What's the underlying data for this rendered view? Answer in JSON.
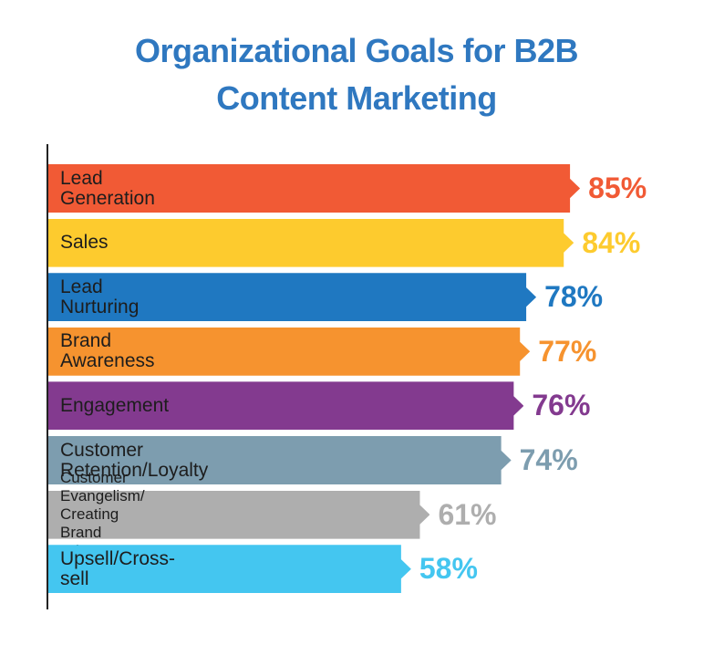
{
  "chart_data": {
    "type": "bar",
    "orientation": "horizontal",
    "title": "Organizational Goals for B2B Content Marketing",
    "categories": [
      "Lead Generation",
      "Sales",
      "Lead Nurturing",
      "Brand Awareness",
      "Engagement",
      "Customer Retention/Loyalty",
      "Customer Evangelism/\nCreating Brand Advocates",
      "Upsell/Cross-sell"
    ],
    "values": [
      85,
      84,
      78,
      77,
      76,
      74,
      61,
      58
    ],
    "value_labels": [
      "85%",
      "84%",
      "78%",
      "77%",
      "76%",
      "74%",
      "61%",
      "58%"
    ],
    "colors": [
      "#f15a35",
      "#fdcb2e",
      "#1f78c1",
      "#f6932f",
      "#833a8f",
      "#7d9daf",
      "#aeaeae",
      "#44c6f0"
    ]
  }
}
